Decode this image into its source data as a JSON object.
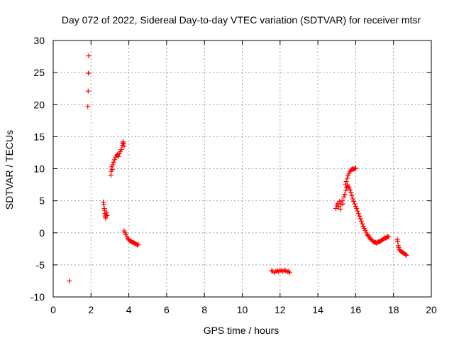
{
  "chart_data": {
    "type": "scatter",
    "title": "Day 072 of 2022, Sidereal Day-to-day VTEC variation (SDTVAR) for receiver mtsr",
    "xlabel": "GPS time / hours",
    "ylabel": "SDTVAR / TECUs",
    "xlim": [
      0,
      20
    ],
    "ylim": [
      -10,
      30
    ],
    "grid": true,
    "marker": "+",
    "color": "#ff0000",
    "xticks": [
      0,
      2,
      4,
      6,
      8,
      10,
      12,
      14,
      16,
      18,
      20
    ],
    "yticks": [
      -10,
      -5,
      0,
      5,
      10,
      15,
      20,
      25,
      30
    ],
    "xtick_labels": [
      "0",
      "2",
      "4",
      "6",
      "8",
      "10",
      "12",
      "14",
      "16",
      "18",
      "20"
    ],
    "ytick_labels": [
      "-10",
      "-5",
      "0",
      "5",
      "10",
      "15",
      "20",
      "25",
      "30"
    ],
    "series": [
      {
        "name": "SDTVAR",
        "points": [
          [
            0.85,
            -7.5
          ],
          [
            1.83,
            19.7
          ],
          [
            1.85,
            22.1
          ],
          [
            1.86,
            24.9
          ],
          [
            1.88,
            27.6
          ],
          [
            2.65,
            4.8
          ],
          [
            2.68,
            4.4
          ],
          [
            2.7,
            3.8
          ],
          [
            2.72,
            3.5
          ],
          [
            2.74,
            3.0
          ],
          [
            2.75,
            2.6
          ],
          [
            2.77,
            2.3
          ],
          [
            2.79,
            2.8
          ],
          [
            2.82,
            3.2
          ],
          [
            2.85,
            2.7
          ],
          [
            3.05,
            9.0
          ],
          [
            3.07,
            9.6
          ],
          [
            3.09,
            10.3
          ],
          [
            3.12,
            9.9
          ],
          [
            3.15,
            10.6
          ],
          [
            3.2,
            11.0
          ],
          [
            3.25,
            11.4
          ],
          [
            3.3,
            11.8
          ],
          [
            3.35,
            12.1
          ],
          [
            3.4,
            12.2
          ],
          [
            3.45,
            11.9
          ],
          [
            3.5,
            12.4
          ],
          [
            3.55,
            12.7
          ],
          [
            3.6,
            13.0
          ],
          [
            3.65,
            13.6
          ],
          [
            3.68,
            14.0
          ],
          [
            3.7,
            14.2
          ],
          [
            3.72,
            13.9
          ],
          [
            3.75,
            13.5
          ],
          [
            3.75,
            0.3
          ],
          [
            3.8,
            0.0
          ],
          [
            3.85,
            -0.3
          ],
          [
            3.9,
            -0.6
          ],
          [
            3.95,
            -0.9
          ],
          [
            4.0,
            -1.1
          ],
          [
            4.05,
            -1.2
          ],
          [
            4.1,
            -1.3
          ],
          [
            4.15,
            -1.4
          ],
          [
            4.2,
            -1.5
          ],
          [
            4.25,
            -1.5
          ],
          [
            4.3,
            -1.6
          ],
          [
            4.35,
            -1.7
          ],
          [
            4.4,
            -1.8
          ],
          [
            4.45,
            -1.9
          ],
          [
            4.5,
            -1.8
          ],
          [
            11.55,
            -5.9
          ],
          [
            11.62,
            -6.0
          ],
          [
            11.7,
            -6.2
          ],
          [
            11.78,
            -6.0
          ],
          [
            11.85,
            -5.9
          ],
          [
            11.92,
            -6.1
          ],
          [
            12.0,
            -5.8
          ],
          [
            12.08,
            -5.9
          ],
          [
            12.15,
            -6.0
          ],
          [
            12.22,
            -5.8
          ],
          [
            12.3,
            -5.9
          ],
          [
            12.38,
            -6.1
          ],
          [
            12.45,
            -6.0
          ],
          [
            12.5,
            -6.2
          ],
          [
            14.95,
            3.8
          ],
          [
            15.0,
            4.3
          ],
          [
            15.05,
            4.6
          ],
          [
            15.1,
            4.1
          ],
          [
            15.15,
            4.9
          ],
          [
            15.18,
            3.7
          ],
          [
            15.22,
            4.4
          ],
          [
            15.28,
            5.0
          ],
          [
            15.32,
            4.5
          ],
          [
            15.38,
            5.6
          ],
          [
            15.42,
            6.0
          ],
          [
            15.48,
            6.6
          ],
          [
            15.52,
            7.1
          ],
          [
            15.57,
            7.5
          ],
          [
            15.6,
            7.2
          ],
          [
            15.45,
            7.5
          ],
          [
            15.5,
            8.0
          ],
          [
            15.55,
            8.5
          ],
          [
            15.6,
            9.0
          ],
          [
            15.65,
            9.3
          ],
          [
            15.7,
            9.6
          ],
          [
            15.75,
            9.8
          ],
          [
            15.8,
            9.9
          ],
          [
            15.85,
            10.0
          ],
          [
            15.9,
            9.9
          ],
          [
            15.95,
            10.0
          ],
          [
            16.0,
            10.1
          ],
          [
            15.65,
            7.0
          ],
          [
            15.7,
            6.7
          ],
          [
            15.75,
            6.3
          ],
          [
            15.8,
            5.8
          ],
          [
            15.85,
            5.3
          ],
          [
            15.9,
            4.9
          ],
          [
            15.95,
            4.5
          ],
          [
            16.0,
            4.1
          ],
          [
            16.05,
            3.8
          ],
          [
            16.1,
            3.4
          ],
          [
            16.15,
            3.0
          ],
          [
            16.2,
            2.6
          ],
          [
            16.25,
            2.2
          ],
          [
            16.3,
            1.8
          ],
          [
            16.35,
            1.4
          ],
          [
            16.4,
            1.0
          ],
          [
            16.45,
            0.7
          ],
          [
            16.5,
            0.4
          ],
          [
            16.55,
            0.1
          ],
          [
            16.6,
            -0.2
          ],
          [
            16.65,
            -0.4
          ],
          [
            16.7,
            -0.6
          ],
          [
            16.75,
            -0.8
          ],
          [
            16.8,
            -1.0
          ],
          [
            16.85,
            -1.1
          ],
          [
            16.9,
            -1.3
          ],
          [
            16.95,
            -1.4
          ],
          [
            17.0,
            -1.5
          ],
          [
            17.05,
            -1.5
          ],
          [
            17.1,
            -1.6
          ],
          [
            17.15,
            -1.5
          ],
          [
            17.2,
            -1.4
          ],
          [
            17.25,
            -1.4
          ],
          [
            17.3,
            -1.3
          ],
          [
            17.35,
            -1.2
          ],
          [
            17.4,
            -1.1
          ],
          [
            17.45,
            -1.0
          ],
          [
            17.5,
            -0.9
          ],
          [
            17.55,
            -0.8
          ],
          [
            17.6,
            -0.8
          ],
          [
            17.65,
            -0.7
          ],
          [
            17.7,
            -0.6
          ],
          [
            17.75,
            -0.6
          ],
          [
            18.2,
            -1.0
          ],
          [
            18.22,
            -1.3
          ],
          [
            18.25,
            -2.0
          ],
          [
            18.28,
            -2.3
          ],
          [
            18.3,
            -2.6
          ],
          [
            18.35,
            -2.8
          ],
          [
            18.4,
            -2.9
          ],
          [
            18.45,
            -3.0
          ],
          [
            18.5,
            -3.1
          ],
          [
            18.55,
            -3.2
          ],
          [
            18.6,
            -3.3
          ],
          [
            18.65,
            -3.4
          ],
          [
            18.68,
            -3.5
          ]
        ]
      }
    ]
  }
}
